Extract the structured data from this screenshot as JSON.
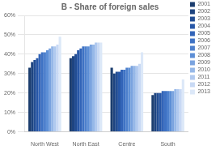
{
  "chart_data": {
    "type": "bar",
    "title": "B - Share of foreign sales",
    "categories": [
      "North West",
      "North East",
      "Centre",
      "South"
    ],
    "series": [
      {
        "name": "2001",
        "color": "#1b3d6e",
        "values": [
          0.33,
          0.38,
          0.33,
          0.19
        ]
      },
      {
        "name": "2002",
        "color": "#1e4480",
        "values": [
          0.36,
          0.39,
          0.3,
          0.2
        ]
      },
      {
        "name": "2003",
        "color": "#224d93",
        "values": [
          0.37,
          0.4,
          0.31,
          0.2
        ]
      },
      {
        "name": "2004",
        "color": "#2757a7",
        "values": [
          0.38,
          0.42,
          0.31,
          0.2
        ]
      },
      {
        "name": "2005",
        "color": "#3264b8",
        "values": [
          0.4,
          0.43,
          0.32,
          0.21
        ]
      },
      {
        "name": "2006",
        "color": "#3e72c4",
        "values": [
          0.41,
          0.44,
          0.32,
          0.21
        ]
      },
      {
        "name": "2007",
        "color": "#4d80cd",
        "values": [
          0.41,
          0.44,
          0.33,
          0.21
        ]
      },
      {
        "name": "2008",
        "color": "#5d8fd6",
        "values": [
          0.42,
          0.44,
          0.33,
          0.21
        ]
      },
      {
        "name": "2009",
        "color": "#7aa3df",
        "values": [
          0.43,
          0.45,
          0.34,
          0.21
        ]
      },
      {
        "name": "2010",
        "color": "#96b8e8",
        "values": [
          0.44,
          0.45,
          0.34,
          0.22
        ]
      },
      {
        "name": "2011",
        "color": "#b0c9ef",
        "values": [
          0.44,
          0.46,
          0.34,
          0.22
        ]
      },
      {
        "name": "2012",
        "color": "#c8d9f4",
        "values": [
          0.45,
          0.46,
          0.35,
          0.22
        ]
      },
      {
        "name": "2013",
        "color": "#dce8f8",
        "values": [
          0.49,
          0.46,
          0.41,
          0.27
        ]
      }
    ],
    "ylim": [
      0,
      0.6
    ],
    "yticks": [
      {
        "value": 0.0,
        "label": "0%"
      },
      {
        "value": 0.1,
        "label": "10%"
      },
      {
        "value": 0.2,
        "label": "20%"
      },
      {
        "value": 0.3,
        "label": "30%"
      },
      {
        "value": 0.4,
        "label": "40%"
      },
      {
        "value": 0.5,
        "label": "50%"
      },
      {
        "value": 0.6,
        "label": "60%"
      }
    ],
    "grid": true,
    "legend": "right"
  }
}
